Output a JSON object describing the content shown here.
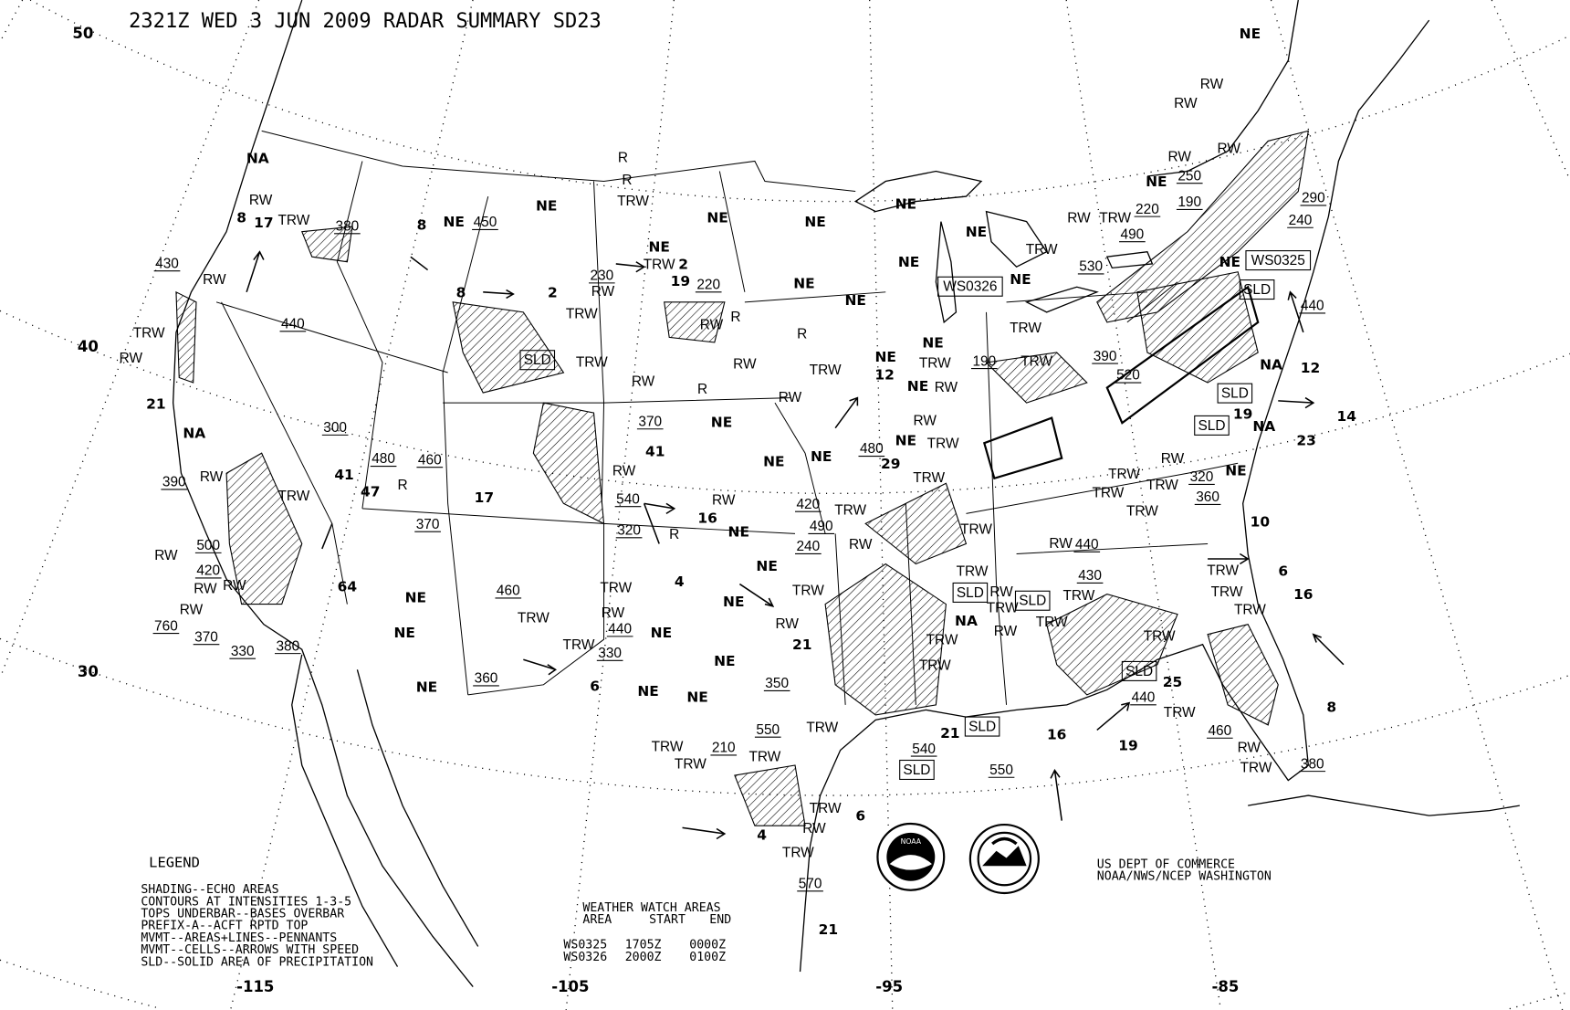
{
  "title": "2321Z WED  3 JUN 2009 RADAR SUMMARY SD23",
  "lat_labels": [
    "50",
    "40",
    "30"
  ],
  "lon_labels": [
    "-115",
    "-105",
    "-95",
    "-85"
  ],
  "legend": {
    "heading": "LEGEND",
    "lines": [
      "SHADING--ECHO AREAS",
      "CONTOURS AT INTENSITIES 1-3-5",
      "TOPS UNDERBAR--BASES OVERBAR",
      "PREFIX-A--ACFT RPTD TOP",
      "MVMT--AREAS+LINES--PENNANTS",
      "MVMT--CELLS--ARROWS WITH SPEED",
      "SLD--SOLID AREA OF PRECIPITATION"
    ]
  },
  "watch_table": {
    "heading": "WEATHER WATCH AREAS",
    "columns": [
      "AREA",
      "START",
      "END"
    ],
    "rows": [
      {
        "area": "WS0325",
        "start": "1705Z",
        "end": "0000Z"
      },
      {
        "area": "WS0326",
        "start": "2000Z",
        "end": "0100Z"
      }
    ]
  },
  "credit": [
    "US DEPT OF COMMERCE",
    "NOAA/NWS/NCEP WASHINGTON"
  ],
  "logos": {
    "left": "NOAA",
    "right": "NATIONAL WEATHER SERVICE"
  },
  "map_labels": {
    "ne": [
      "NE",
      "NE",
      "NE",
      "NE",
      "NE",
      "NE",
      "NE",
      "NE",
      "NE",
      "NE",
      "NE",
      "NE",
      "NE",
      "NE",
      "NE",
      "NE",
      "NE",
      "NE",
      "NE",
      "NE",
      "NE",
      "NE",
      "NE",
      "NE",
      "NE",
      "NE",
      "NE",
      "NE",
      "NE",
      "NE",
      "NE",
      "NE"
    ],
    "na": [
      "NA",
      "NA",
      "NA",
      "NA",
      "NA"
    ],
    "trw": [
      "TRW",
      "TRW",
      "TRW",
      "TRW",
      "TRW",
      "TRW",
      "TRW",
      "TRW",
      "TRW",
      "TRW",
      "TRW",
      "TRW",
      "TRW",
      "TRW",
      "TRW",
      "TRW",
      "TRW",
      "TRW",
      "TRW",
      "TRW",
      "TRW",
      "TRW",
      "TRW",
      "TRW",
      "TRW",
      "TRW",
      "TRW",
      "TRW",
      "TRW",
      "TRW",
      "TRW",
      "TRW",
      "TRW",
      "TRW",
      "TRW",
      "TRW",
      "TRW",
      "TRW",
      "TRW",
      "TRW",
      "TRW",
      "TRW",
      "TRW"
    ],
    "rw": [
      "RW",
      "RW",
      "RW",
      "RW",
      "RW",
      "RW",
      "RW",
      "RW",
      "RW",
      "RW",
      "RW",
      "RW",
      "RW",
      "RW",
      "RW",
      "RW",
      "RW",
      "RW",
      "RW",
      "RW",
      "RW",
      "RW",
      "RW",
      "RW",
      "RW",
      "RW",
      "RW",
      "RW",
      "RW",
      "RW",
      "RW"
    ],
    "r": [
      "R",
      "R",
      "R",
      "R",
      "R",
      "R",
      "R"
    ],
    "tops": [
      "430",
      "380",
      "440",
      "450",
      "230",
      "220",
      "480",
      "460",
      "370",
      "390",
      "300",
      "500",
      "420",
      "760",
      "370",
      "330",
      "380",
      "460",
      "360",
      "330",
      "440",
      "320",
      "540",
      "370",
      "480",
      "420",
      "490",
      "240",
      "350",
      "550",
      "210",
      "540",
      "550",
      "190",
      "530",
      "490",
      "220",
      "250",
      "190",
      "290",
      "240",
      "440",
      "390",
      "520",
      "460",
      "380",
      "440",
      "430",
      "440",
      "360",
      "320",
      "570"
    ],
    "speeds": [
      "8",
      "17",
      "8",
      "8",
      "2",
      "2",
      "19",
      "41",
      "47",
      "17",
      "41",
      "16",
      "4",
      "6",
      "64",
      "21",
      "21",
      "29",
      "12",
      "12",
      "14",
      "23",
      "19",
      "10",
      "6",
      "16",
      "8",
      "25",
      "19",
      "16",
      "21",
      "6",
      "4",
      "21"
    ],
    "sld": [
      "SLD",
      "SLD",
      "SLD",
      "SLD",
      "SLD",
      "SLD",
      "SLD",
      "SLD",
      "SLD"
    ],
    "watch_boxes": [
      "WS0326",
      "WS0325"
    ]
  }
}
